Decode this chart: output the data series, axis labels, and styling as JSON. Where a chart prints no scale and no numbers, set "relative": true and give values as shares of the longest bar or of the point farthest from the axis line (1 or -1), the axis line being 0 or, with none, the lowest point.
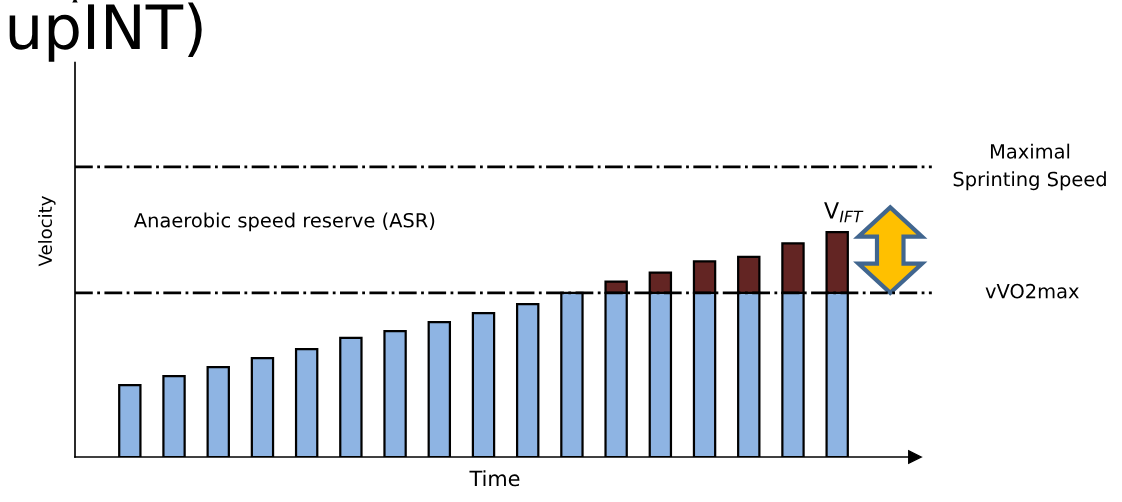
{
  "chart_data": {
    "type": "bar",
    "title": "upINT)",
    "xlabel": "Time",
    "ylabel": "Velocity",
    "relative": true,
    "stacked": true,
    "categories": [
      null,
      null,
      null,
      null,
      null,
      null,
      null,
      null,
      null,
      null,
      null,
      null,
      null,
      null,
      null,
      null,
      null
    ],
    "series": [
      {
        "color": "#8eb4e3",
        "values": [
          0.32,
          0.36,
          0.4,
          0.44,
          0.48,
          0.53,
          0.56,
          0.6,
          0.64,
          0.68,
          0.73,
          0.73,
          0.73,
          0.73,
          0.73,
          0.73,
          0.73
        ]
      },
      {
        "color": "#632523",
        "values": [
          null,
          null,
          null,
          null,
          null,
          null,
          null,
          null,
          null,
          null,
          null,
          0.05,
          0.09,
          0.14,
          0.16,
          0.22,
          0.27
        ]
      }
    ],
    "ref_lines": [
      {
        "axis": "y",
        "value": 1.29,
        "label": "Maximal\nSprinting Speed",
        "color": "#000000",
        "line_style": "dashdot"
      },
      {
        "axis": "y",
        "value": 0.73,
        "label": "vVO2max",
        "color": "#000000",
        "line_style": "dashdot"
      }
    ],
    "annotations": [
      "Anaerobic speed reserve (ASR)",
      "V$_{IFT}$"
    ],
    "grid": false
  }
}
